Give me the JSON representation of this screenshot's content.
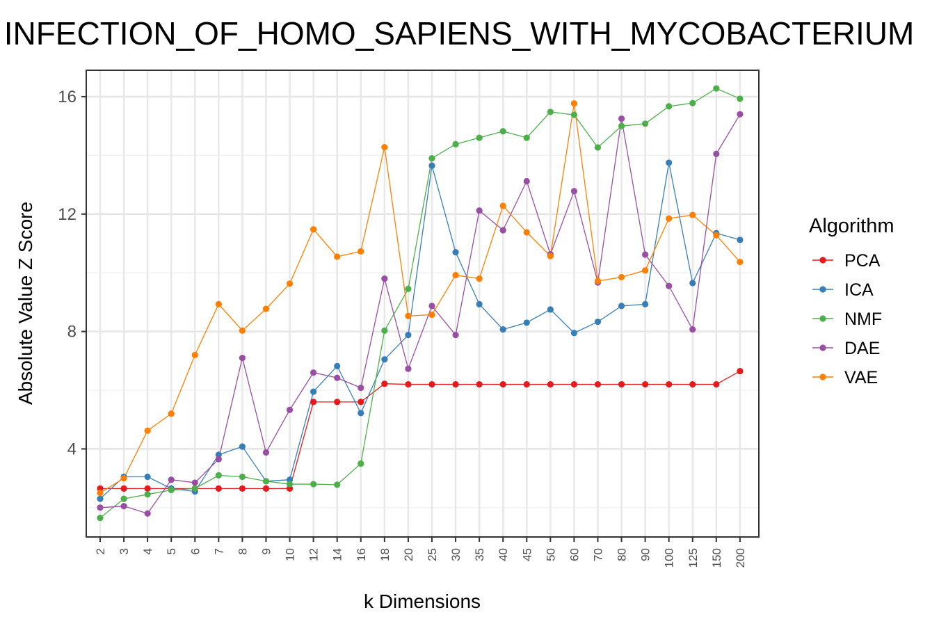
{
  "chart_data": {
    "type": "line",
    "title": "INFECTION_OF_HOMO_SAPIENS_WITH_MYCOBACTERIUM",
    "xlabel": "k Dimensions",
    "ylabel": "Absolute Value Z Score",
    "categories": [
      "2",
      "3",
      "4",
      "5",
      "6",
      "7",
      "8",
      "9",
      "10",
      "12",
      "14",
      "16",
      "18",
      "20",
      "25",
      "30",
      "35",
      "40",
      "45",
      "50",
      "60",
      "70",
      "80",
      "90",
      "100",
      "125",
      "150",
      "200"
    ],
    "ylim": [
      1.0,
      16.9
    ],
    "yticks": [
      4,
      8,
      12,
      16
    ],
    "grid": true,
    "legend": {
      "title": "Algorithm",
      "placement": "right"
    },
    "series": [
      {
        "name": "PCA",
        "color": "#e41a1c",
        "values": [
          2.65,
          2.65,
          2.65,
          2.65,
          2.65,
          2.65,
          2.65,
          2.65,
          2.65,
          5.6,
          5.6,
          5.6,
          6.22,
          6.2,
          6.2,
          6.2,
          6.2,
          6.2,
          6.2,
          6.2,
          6.2,
          6.2,
          6.2,
          6.2,
          6.2,
          6.2,
          6.2,
          6.65
        ]
      },
      {
        "name": "ICA",
        "color": "#377eb8",
        "values": [
          2.3,
          3.05,
          3.05,
          2.65,
          2.55,
          3.8,
          4.08,
          2.9,
          2.95,
          5.95,
          6.82,
          5.22,
          7.05,
          7.88,
          13.65,
          10.7,
          8.93,
          8.07,
          8.3,
          8.75,
          7.95,
          8.33,
          8.87,
          8.93,
          13.75,
          9.65,
          11.35,
          11.12
        ]
      },
      {
        "name": "NMF",
        "color": "#4daf4a",
        "values": [
          1.65,
          2.3,
          2.45,
          2.6,
          2.65,
          3.1,
          3.05,
          2.9,
          2.8,
          2.8,
          2.78,
          3.5,
          8.03,
          9.45,
          13.9,
          14.38,
          14.6,
          14.82,
          14.6,
          15.48,
          15.38,
          14.27,
          15.0,
          15.08,
          15.67,
          15.78,
          16.28,
          15.93
        ]
      },
      {
        "name": "DAE",
        "color": "#984ea3",
        "values": [
          2.0,
          2.05,
          1.8,
          2.95,
          2.85,
          3.65,
          7.1,
          3.88,
          5.33,
          6.6,
          6.42,
          6.08,
          9.8,
          6.73,
          8.87,
          7.88,
          12.12,
          11.45,
          13.12,
          10.63,
          12.78,
          9.67,
          15.25,
          10.62,
          9.55,
          8.07,
          14.05,
          15.4
        ]
      },
      {
        "name": "VAE",
        "color": "#ff7f00",
        "values": [
          2.5,
          3.0,
          4.62,
          5.2,
          7.2,
          8.93,
          8.03,
          8.77,
          9.63,
          11.48,
          10.55,
          10.73,
          14.28,
          8.53,
          8.57,
          9.92,
          9.8,
          12.28,
          11.38,
          10.57,
          15.77,
          9.72,
          9.85,
          10.08,
          11.85,
          11.97,
          11.28,
          10.37
        ]
      }
    ]
  }
}
